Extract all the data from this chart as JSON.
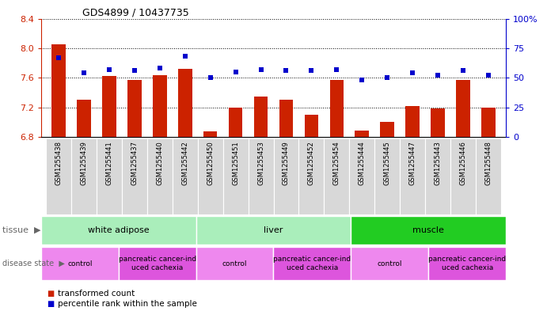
{
  "title": "GDS4899 / 10437735",
  "samples": [
    "GSM1255438",
    "GSM1255439",
    "GSM1255441",
    "GSM1255437",
    "GSM1255440",
    "GSM1255442",
    "GSM1255450",
    "GSM1255451",
    "GSM1255453",
    "GSM1255449",
    "GSM1255452",
    "GSM1255454",
    "GSM1255444",
    "GSM1255445",
    "GSM1255447",
    "GSM1255443",
    "GSM1255446",
    "GSM1255448"
  ],
  "transformed_count": [
    8.05,
    7.3,
    7.62,
    7.57,
    7.63,
    7.72,
    6.87,
    7.2,
    7.35,
    7.3,
    7.1,
    7.57,
    6.88,
    7.0,
    7.22,
    7.18,
    7.57,
    7.2
  ],
  "percentile_rank": [
    67,
    54,
    57,
    56,
    58,
    68,
    50,
    55,
    57,
    56,
    56,
    57,
    48,
    50,
    54,
    52,
    56,
    52
  ],
  "ylim_left": [
    6.8,
    8.4
  ],
  "ylim_right": [
    0,
    100
  ],
  "bar_color": "#CC2200",
  "dot_color": "#0000CC",
  "bg_color": "#D8D8D8",
  "tissue_groups": [
    {
      "label": "white adipose",
      "start": 0,
      "end": 6,
      "color": "#AAEEBB"
    },
    {
      "label": "liver",
      "start": 6,
      "end": 12,
      "color": "#AAEEBB"
    },
    {
      "label": "muscle",
      "start": 12,
      "end": 18,
      "color": "#22CC22"
    }
  ],
  "disease_groups": [
    {
      "label": "control",
      "start": 0,
      "end": 3,
      "color": "#EE88EE"
    },
    {
      "label": "pancreatic cancer-ind\nuced cachexia",
      "start": 3,
      "end": 6,
      "color": "#DD55DD"
    },
    {
      "label": "control",
      "start": 6,
      "end": 9,
      "color": "#EE88EE"
    },
    {
      "label": "pancreatic cancer-ind\nuced cachexia",
      "start": 9,
      "end": 12,
      "color": "#DD55DD"
    },
    {
      "label": "control",
      "start": 12,
      "end": 15,
      "color": "#EE88EE"
    },
    {
      "label": "pancreatic cancer-ind\nuced cachexia",
      "start": 15,
      "end": 18,
      "color": "#DD55DD"
    }
  ],
  "yticks_left": [
    6.8,
    7.2,
    7.6,
    8.0,
    8.4
  ],
  "yticks_right": [
    0,
    25,
    50,
    75,
    100
  ],
  "left_tick_color": "#CC2200",
  "right_tick_color": "#0000CC",
  "label_fontsize": 8,
  "tick_fontsize": 8,
  "bar_width": 0.55
}
